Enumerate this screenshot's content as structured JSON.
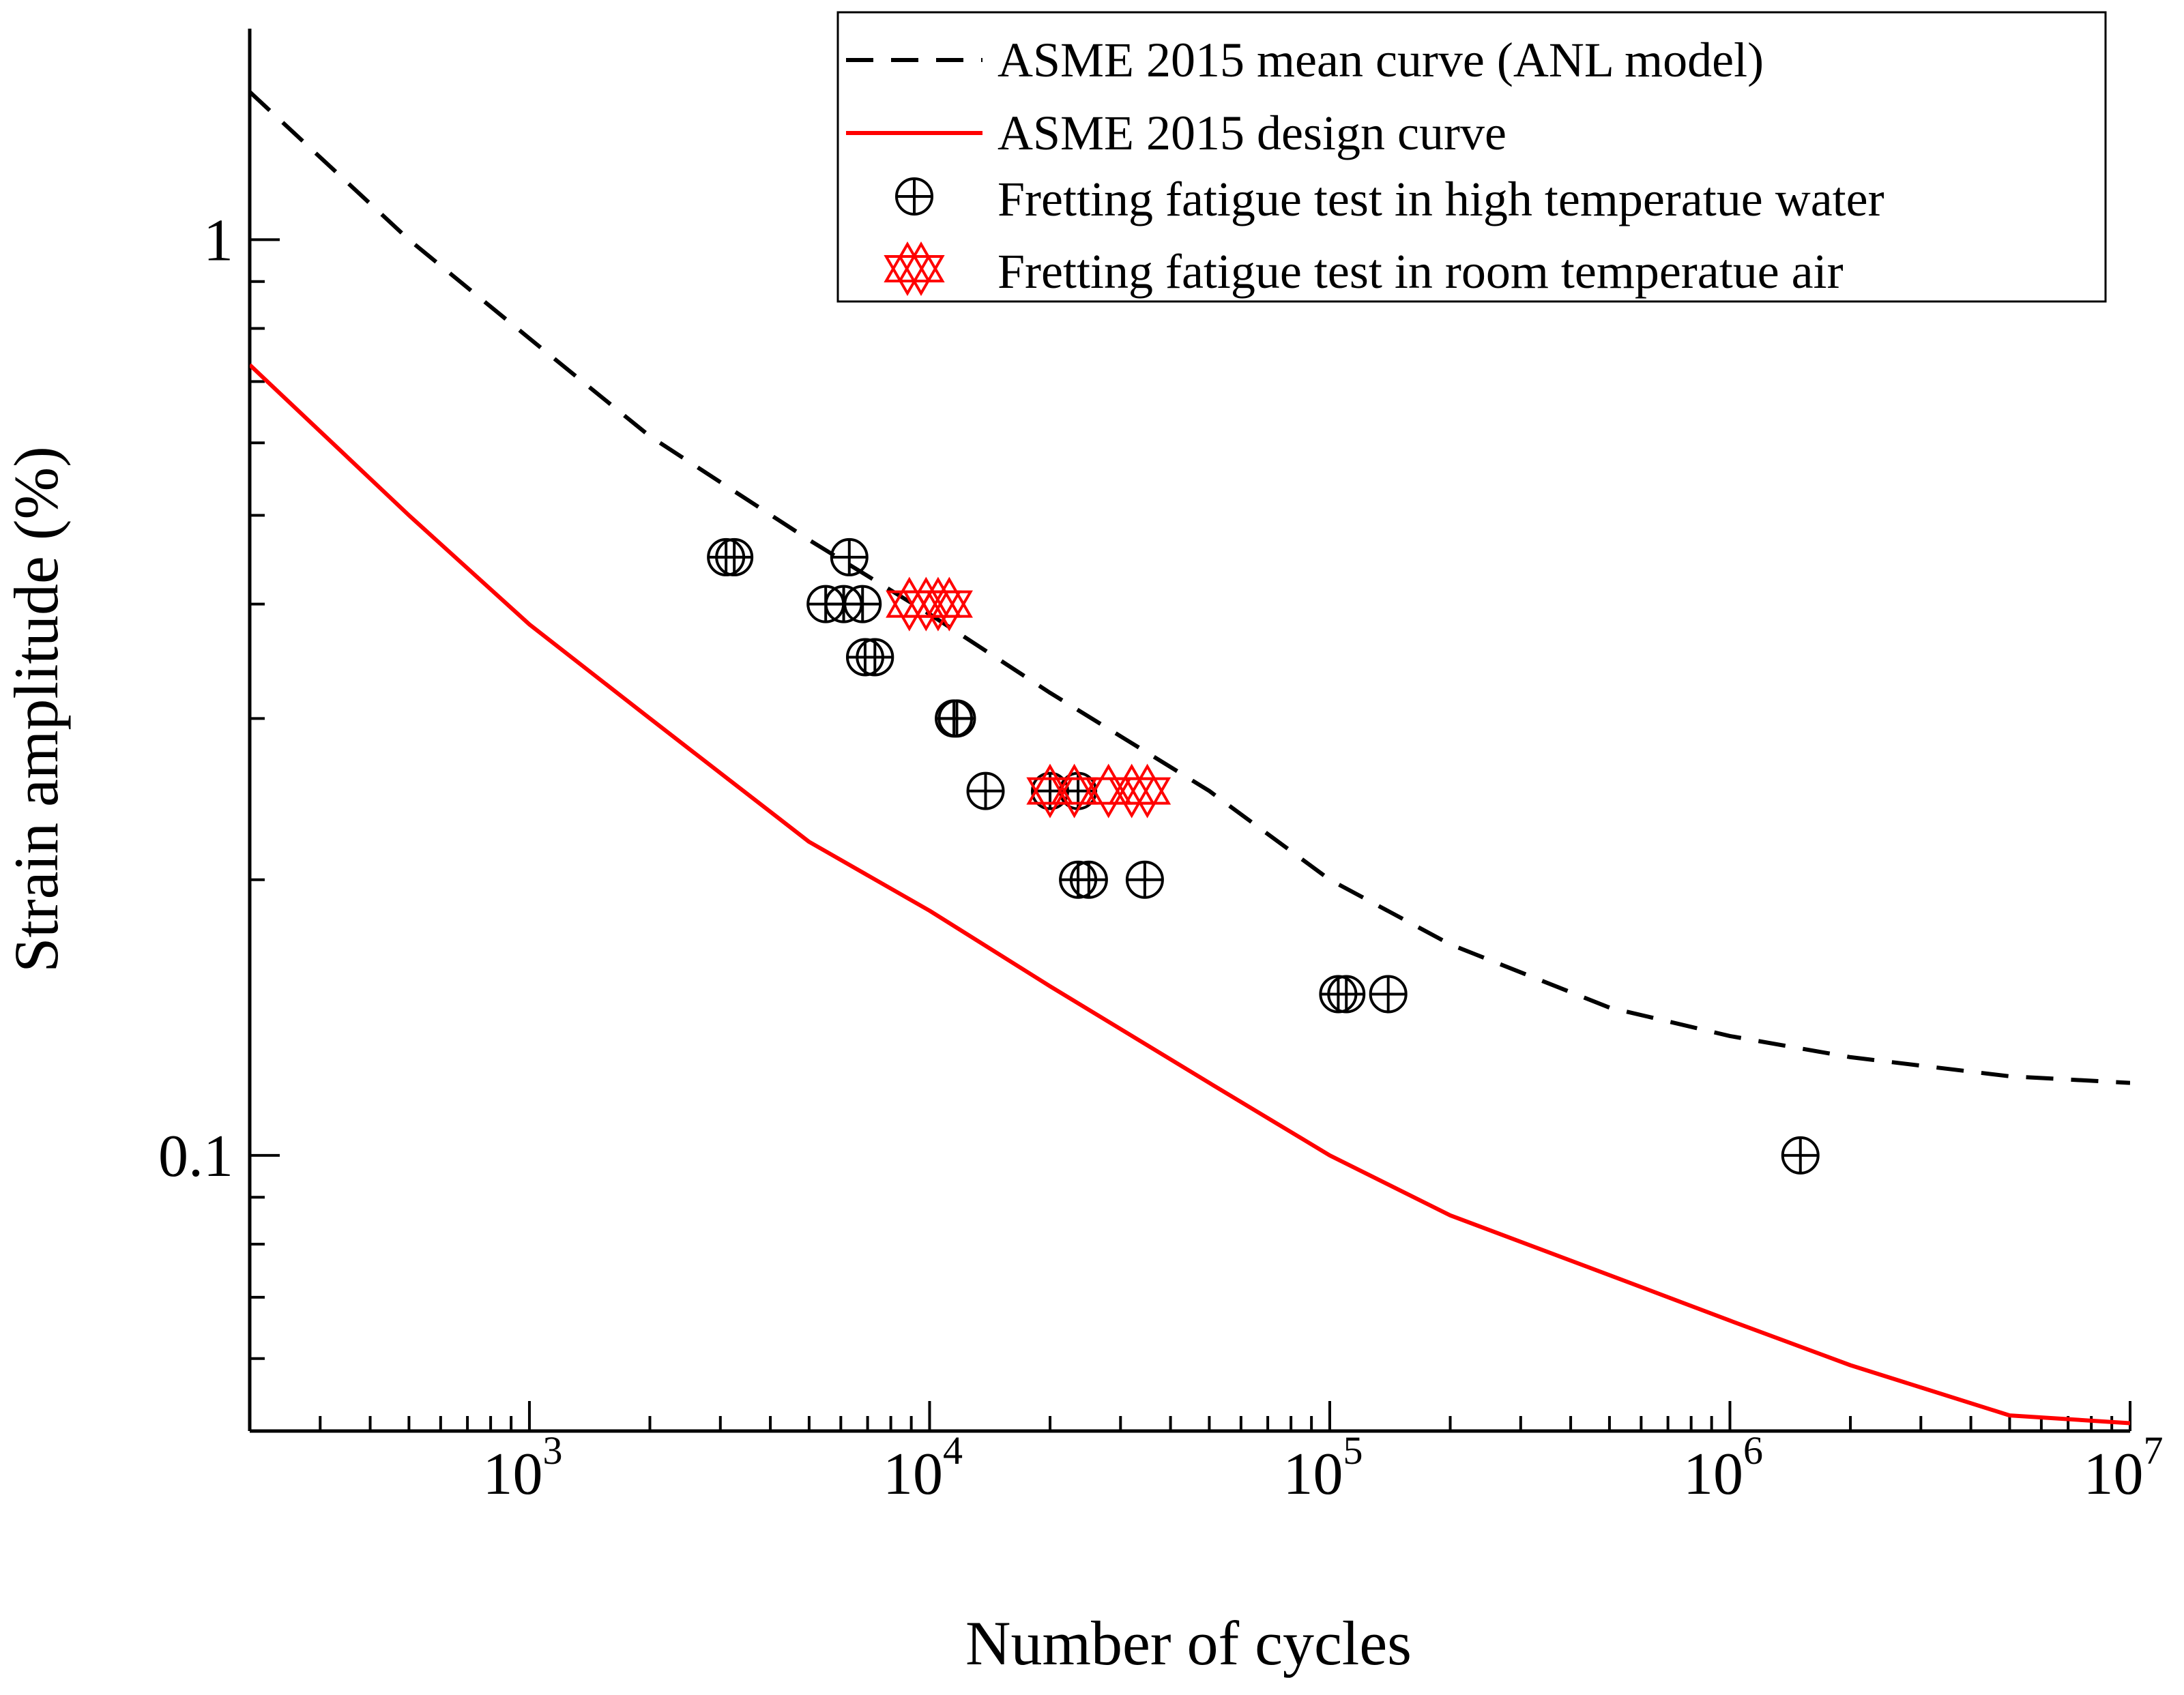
{
  "chart_data": {
    "type": "scatter",
    "xlabel": "Number of cycles",
    "ylabel": "Strain amplitude (%)",
    "xscale": "log",
    "yscale": "log",
    "xlim": [
      200,
      10000000
    ],
    "ylim": [
      0.05,
      1.7
    ],
    "x_tick_labels": [
      {
        "value": 1000,
        "base": "10",
        "exp": "3"
      },
      {
        "value": 10000,
        "base": "10",
        "exp": "4"
      },
      {
        "value": 100000,
        "base": "10",
        "exp": "5"
      },
      {
        "value": 1000000,
        "base": "10",
        "exp": "6"
      },
      {
        "value": 10000000,
        "base": "10",
        "exp": "7"
      }
    ],
    "y_tick_labels": [
      {
        "value": 0.1,
        "label": "0.1"
      },
      {
        "value": 1,
        "label": "1"
      }
    ],
    "legend_position": "top-right",
    "series": [
      {
        "name": "ASME 2015 mean curve (ANL model)",
        "kind": "line",
        "style": "dashed",
        "color": "#000000",
        "x": [
          200,
          500,
          1000,
          2000,
          5000,
          10000,
          20000,
          50000,
          100000,
          200000,
          500000,
          1000000,
          2000000,
          5000000,
          10000000
        ],
        "y": [
          1.45,
          1.0,
          0.78,
          0.61,
          0.47,
          0.39,
          0.32,
          0.25,
          0.2,
          0.17,
          0.145,
          0.135,
          0.128,
          0.122,
          0.12
        ]
      },
      {
        "name": "ASME 2015 design curve",
        "kind": "line",
        "style": "solid",
        "color": "#ff0000",
        "x": [
          200,
          500,
          1000,
          2000,
          5000,
          10000,
          20000,
          50000,
          100000,
          200000,
          500000,
          1000000,
          2000000,
          5000000,
          10000000
        ],
        "y": [
          0.73,
          0.5,
          0.38,
          0.3,
          0.22,
          0.185,
          0.153,
          0.12,
          0.1,
          0.086,
          0.074,
          0.066,
          0.059,
          0.052,
          0.051
        ]
      },
      {
        "name": "Fretting fatigue test in high temperatue water",
        "kind": "scatter",
        "marker": "circle-plus",
        "color": "#000000",
        "points": [
          {
            "x": 3100,
            "y": 0.45
          },
          {
            "x": 3250,
            "y": 0.45
          },
          {
            "x": 5500,
            "y": 0.4
          },
          {
            "x": 6100,
            "y": 0.4
          },
          {
            "x": 6800,
            "y": 0.4
          },
          {
            "x": 6300,
            "y": 0.45
          },
          {
            "x": 6900,
            "y": 0.35
          },
          {
            "x": 7300,
            "y": 0.35
          },
          {
            "x": 11500,
            "y": 0.3
          },
          {
            "x": 11700,
            "y": 0.3
          },
          {
            "x": 13800,
            "y": 0.25
          },
          {
            "x": 20000,
            "y": 0.25
          },
          {
            "x": 23500,
            "y": 0.25
          },
          {
            "x": 23500,
            "y": 0.2
          },
          {
            "x": 25000,
            "y": 0.2
          },
          {
            "x": 34500,
            "y": 0.2
          },
          {
            "x": 105000,
            "y": 0.15
          },
          {
            "x": 110000,
            "y": 0.15
          },
          {
            "x": 140000,
            "y": 0.15
          },
          {
            "x": 1500000,
            "y": 0.1
          }
        ]
      },
      {
        "name": "Fretting fatigue test in room temperatue air",
        "kind": "scatter",
        "marker": "star-of-david-open",
        "color": "#ff0000",
        "points": [
          {
            "x": 8900,
            "y": 0.4
          },
          {
            "x": 9800,
            "y": 0.4
          },
          {
            "x": 10500,
            "y": 0.4
          },
          {
            "x": 11200,
            "y": 0.4
          },
          {
            "x": 20000,
            "y": 0.25
          },
          {
            "x": 23000,
            "y": 0.25
          },
          {
            "x": 28000,
            "y": 0.25
          },
          {
            "x": 32000,
            "y": 0.25
          },
          {
            "x": 35000,
            "y": 0.25
          }
        ]
      }
    ]
  }
}
